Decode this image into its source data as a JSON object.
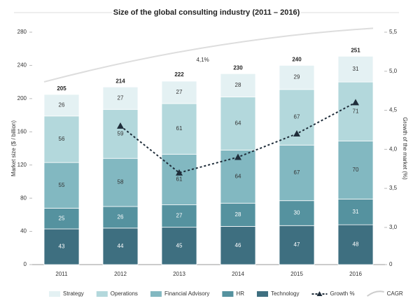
{
  "chart_data": {
    "type": "stacked_bar_line",
    "title": "Size of the global consulting industry (2011 – 2016)",
    "y_label": "Market size ($ / billion)",
    "y2_label": "Growth of the market (%)",
    "categories": [
      "2011",
      "2012",
      "2013",
      "2014",
      "2015",
      "2016"
    ],
    "series": [
      {
        "name": "Technology",
        "color": "#3e6f80",
        "values": [
          43,
          44,
          45,
          46,
          47,
          48
        ]
      },
      {
        "name": "HR",
        "color": "#55929f",
        "values": [
          25,
          26,
          27,
          28,
          30,
          31
        ]
      },
      {
        "name": "Financial Advisory",
        "color": "#82b8c1",
        "values": [
          55,
          58,
          61,
          64,
          67,
          70
        ]
      },
      {
        "name": "Operations",
        "color": "#b3d8dc",
        "values": [
          56,
          59,
          61,
          64,
          67,
          71
        ]
      },
      {
        "name": "Strategy",
        "color": "#e4f1f3",
        "values": [
          26,
          27,
          27,
          28,
          29,
          31
        ]
      },
      {
        "name": "Growth %",
        "color": "#1f2d3a",
        "axis": "y2",
        "values": [
          null,
          4.3,
          3.7,
          3.9,
          4.2,
          4.6
        ]
      }
    ],
    "totals": [
      205,
      214,
      222,
      230,
      240,
      251
    ],
    "cagr": {
      "name": "CAGR",
      "label": "4,1%"
    },
    "ylim": [
      0,
      280
    ],
    "yticks": [
      0,
      40,
      80,
      120,
      160,
      200,
      240,
      280
    ],
    "y2lim": [
      0,
      5.5
    ],
    "y2ticks": [
      0,
      {
        "value": 3.0,
        "label": "3,0"
      },
      {
        "value": 3.5,
        "label": "3,5"
      },
      {
        "value": 4.0,
        "label": "4,0"
      },
      {
        "value": 4.5,
        "label": "4,5"
      },
      {
        "value": 5.0,
        "label": "5,0"
      },
      {
        "value": 5.5,
        "label": "5,5"
      }
    ],
    "y2_axis_break": true,
    "grid": false
  }
}
